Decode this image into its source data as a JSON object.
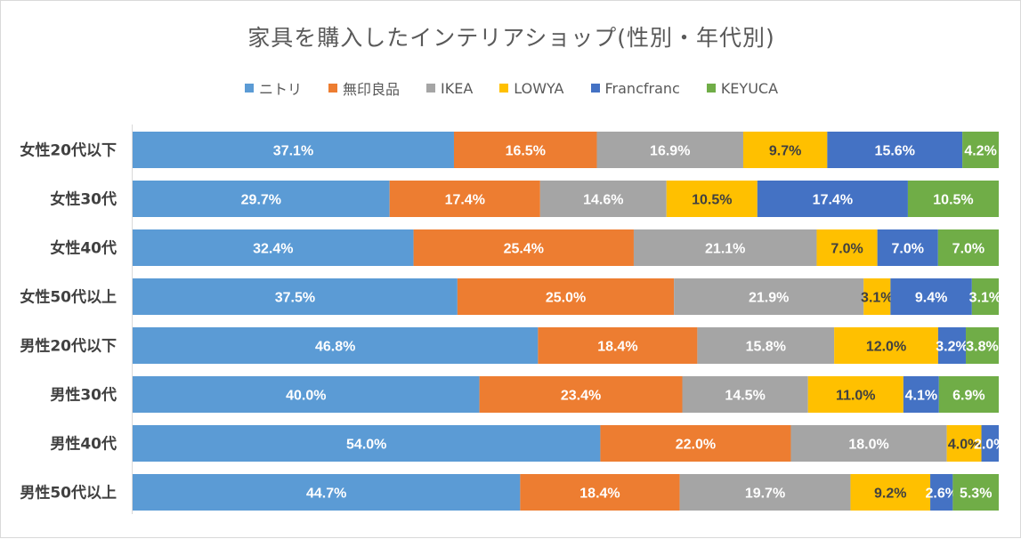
{
  "chart_data": {
    "type": "bar",
    "orientation": "horizontal",
    "stacked": "100%",
    "title": "家具を購入したインテリアショップ(性別・年代別)",
    "categories": [
      "女性20代以下",
      "女性30代",
      "女性40代",
      "女性50代以上",
      "男性20代以下",
      "男性30代",
      "男性40代",
      "男性50代以上"
    ],
    "series": [
      {
        "name": "ニトリ",
        "color": "#5b9bd5",
        "label_color": "#ffffff",
        "values": [
          37.1,
          29.7,
          32.4,
          37.5,
          46.8,
          40.0,
          54.0,
          44.7
        ],
        "labels": [
          "37.1%",
          "29.7%",
          "32.4%",
          "37.5%",
          "46.8%",
          "40.0%",
          "54.0%",
          "44.7%"
        ]
      },
      {
        "name": "無印良品",
        "color": "#ed7d31",
        "label_color": "#ffffff",
        "values": [
          16.5,
          17.4,
          25.4,
          25.0,
          18.4,
          23.4,
          22.0,
          18.4
        ],
        "labels": [
          "16.5%",
          "17.4%",
          "25.4%",
          "25.0%",
          "18.4%",
          "23.4%",
          "22.0%",
          "18.4%"
        ]
      },
      {
        "name": "IKEA",
        "color": "#a5a5a5",
        "label_color": "#ffffff",
        "values": [
          16.9,
          14.6,
          21.1,
          21.9,
          15.8,
          14.5,
          18.0,
          19.7
        ],
        "labels": [
          "16.9%",
          "14.6%",
          "21.1%",
          "21.9%",
          "15.8%",
          "14.5%",
          "18.0%",
          "19.7%"
        ]
      },
      {
        "name": "LOWYA",
        "color": "#ffc000",
        "label_color": "#404040",
        "values": [
          9.7,
          10.5,
          7.0,
          3.1,
          12.0,
          11.0,
          4.0,
          9.2
        ],
        "labels": [
          "9.7%",
          "10.5%",
          "7.0%",
          "3.1%",
          "12.0%",
          "11.0%",
          "4.0%",
          "9.2%"
        ]
      },
      {
        "name": "Francfranc",
        "color": "#4472c4",
        "label_color": "#ffffff",
        "values": [
          15.6,
          17.4,
          7.0,
          9.4,
          3.2,
          4.1,
          2.0,
          2.6
        ],
        "labels": [
          "15.6%",
          "17.4%",
          "7.0%",
          "9.4%",
          "3.2%",
          "4.1%",
          "2.0%",
          "2.6%"
        ]
      },
      {
        "name": "KEYUCA",
        "color": "#70ad47",
        "label_color": "#ffffff",
        "values": [
          4.2,
          10.5,
          7.0,
          3.1,
          3.8,
          6.9,
          0,
          5.3
        ],
        "labels": [
          "4.2%",
          "10.5%",
          "7.0%",
          "3.1%",
          "3.8%",
          "6.9%",
          "",
          "5.3%"
        ]
      }
    ],
    "xlim": [
      0,
      100
    ],
    "legend_position": "top",
    "grid": false
  }
}
